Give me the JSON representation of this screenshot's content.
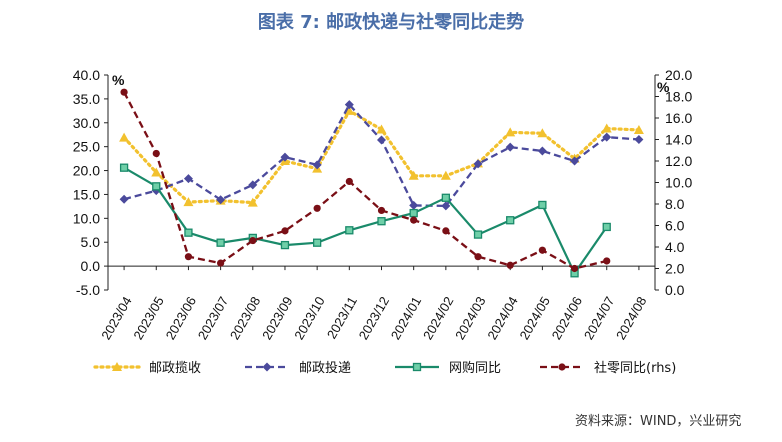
{
  "title": "图表 7:  邮政快递与社零同比走势",
  "source": "资料来源：WIND，兴业研究",
  "chart_data": {
    "type": "line",
    "categories": [
      "2023/04",
      "2023/05",
      "2023/06",
      "2023/07",
      "2023/08",
      "2023/09",
      "2023/10",
      "2023/11",
      "2023/12",
      "2024/01",
      "2024/02",
      "2024/03",
      "2024/04",
      "2024/05",
      "2024/06",
      "2024/07",
      "2024/08"
    ],
    "left_axis": {
      "unit": "%",
      "ylim": [
        -5,
        40
      ],
      "ticks": [
        "40.0",
        "35.0",
        "30.0",
        "25.0",
        "20.0",
        "15.0",
        "10.0",
        "5.0",
        "0.0",
        "-5.0"
      ]
    },
    "right_axis": {
      "unit": "%",
      "ylim": [
        0,
        20
      ],
      "ticks": [
        "20.0",
        "18.0",
        "16.0",
        "14.0",
        "12.0",
        "10.0",
        "8.0",
        "6.0",
        "4.0",
        "2.0",
        "0.0"
      ]
    },
    "grid": false,
    "legend_position": "bottom",
    "series": [
      {
        "name": "邮政揽收",
        "axis": "left",
        "color": "#f2c12e",
        "style": "dotted",
        "marker": "triangle",
        "values": [
          26.9,
          19.6,
          13.4,
          13.7,
          13.3,
          22.0,
          20.4,
          32.5,
          28.6,
          18.9,
          18.9,
          21.5,
          28.0,
          27.8,
          22.5,
          28.8,
          28.5
        ]
      },
      {
        "name": "邮政投递",
        "axis": "left",
        "color": "#4b4a9c",
        "style": "dashed",
        "marker": "diamond",
        "values": [
          14.0,
          15.8,
          18.3,
          13.9,
          17.0,
          22.8,
          21.2,
          33.8,
          26.4,
          12.7,
          12.6,
          21.4,
          24.9,
          24.1,
          22.0,
          27.0,
          26.5
        ]
      },
      {
        "name": "网购同比",
        "axis": "left",
        "color": "#1a8a6a",
        "style": "solid",
        "marker": "square",
        "values": [
          20.6,
          16.7,
          7.0,
          4.9,
          5.9,
          4.4,
          4.9,
          7.5,
          9.4,
          11.1,
          14.3,
          6.6,
          9.6,
          12.8,
          -1.5,
          8.2,
          null
        ]
      },
      {
        "name": "社零同比(rhs)",
        "axis": "right",
        "color": "#7a0f16",
        "style": "dashed",
        "marker": "circle",
        "values": [
          18.4,
          12.7,
          3.1,
          2.5,
          4.6,
          5.5,
          7.6,
          10.1,
          7.4,
          6.5,
          5.5,
          3.1,
          2.3,
          3.7,
          2.0,
          2.7,
          null
        ]
      }
    ]
  }
}
